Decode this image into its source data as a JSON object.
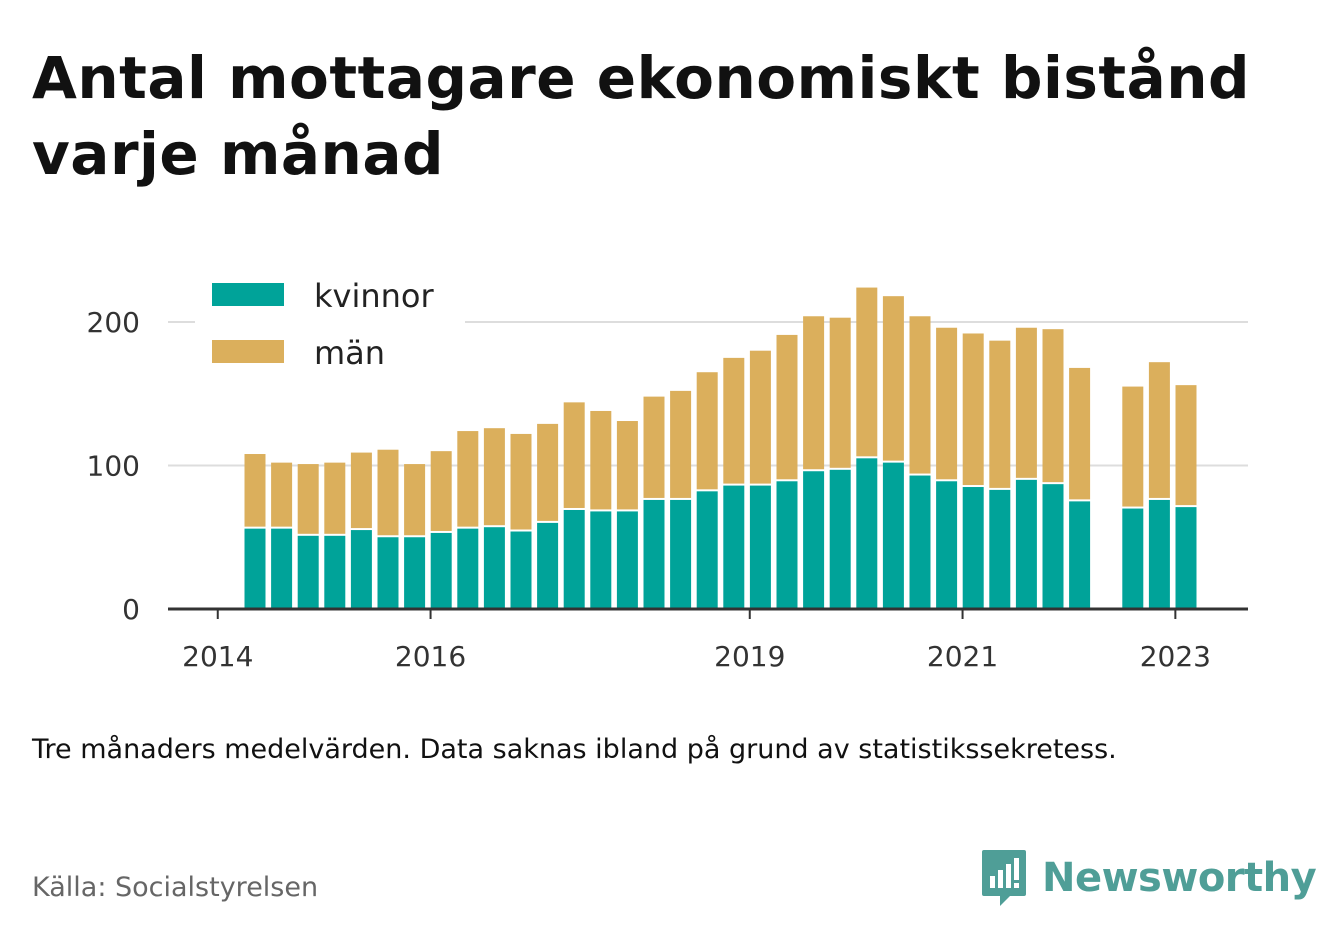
{
  "title": "Antal mottagare ekonomiskt bistånd varje månad",
  "note": "Tre månaders medelvärden. Data saknas ibland på grund av statistikssekretess.",
  "source": "Källa: Socialstyrelsen",
  "brand": {
    "name": "Newsworthy",
    "icon": "newsworthy-logo-icon"
  },
  "colors": {
    "kvinnor": "#00a399",
    "man": "#dbaf5c",
    "grid": "#dddddd",
    "axis": "#333333"
  },
  "chart_data": {
    "type": "bar",
    "stacked": true,
    "x_ticks": [
      "2014",
      "2016",
      "2019",
      "2021",
      "2023"
    ],
    "y_ticks": [
      "0",
      "100",
      "200"
    ],
    "ylim": [
      0,
      225
    ],
    "legend_position": "top-left",
    "categories": [
      "2014-Q2",
      "2014-Q3",
      "2014-Q4",
      "2015-Q1",
      "2015-Q2",
      "2015-Q3",
      "2015-Q4",
      "2016-Q1",
      "2016-Q2",
      "2016-Q3",
      "2016-Q4",
      "2017-Q1",
      "2017-Q2",
      "2017-Q3",
      "2017-Q4",
      "2018-Q1",
      "2018-Q2",
      "2018-Q3",
      "2018-Q4",
      "2019-Q1",
      "2019-Q2",
      "2019-Q3",
      "2019-Q4",
      "2020-Q1",
      "2020-Q2",
      "2020-Q3",
      "2020-Q4",
      "2021-Q1",
      "2021-Q2",
      "2021-Q3",
      "2021-Q4",
      "2022-Q1",
      "2022-Q2",
      "2022-Q3",
      "2022-Q4",
      "2023-Q1"
    ],
    "series": [
      {
        "name": "kvinnor",
        "values": [
          56,
          56,
          51,
          51,
          55,
          50,
          50,
          53,
          56,
          57,
          54,
          60,
          69,
          68,
          68,
          76,
          76,
          82,
          86,
          86,
          89,
          96,
          97,
          105,
          102,
          93,
          89,
          85,
          83,
          90,
          87,
          75,
          null,
          70,
          76,
          71
        ]
      },
      {
        "name": "män",
        "values": [
          52,
          46,
          50,
          51,
          54,
          61,
          51,
          57,
          68,
          69,
          68,
          69,
          75,
          70,
          63,
          72,
          76,
          83,
          89,
          94,
          102,
          108,
          106,
          119,
          116,
          111,
          107,
          107,
          104,
          106,
          108,
          93,
          null,
          85,
          96,
          85
        ]
      }
    ]
  }
}
